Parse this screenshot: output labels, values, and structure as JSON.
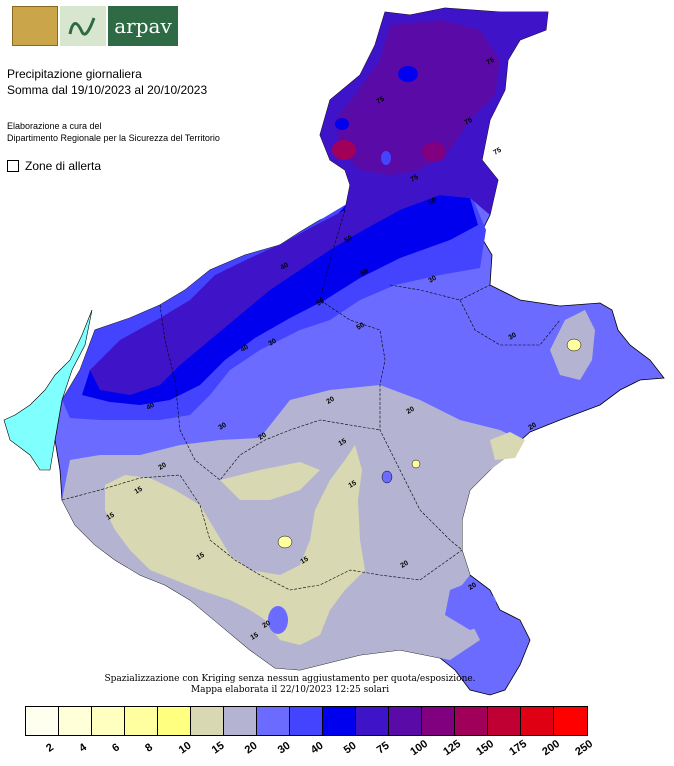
{
  "logo": {
    "brand": "arpav"
  },
  "title": {
    "line1": "Precipitazione giornaliera",
    "line2": "Somma dal 19/10/2023 al 20/10/2023"
  },
  "credits": {
    "line1": "Elaborazione a cura del",
    "line2": "Dipartimento Regionale per la Sicurezza del Territorio"
  },
  "alert_zones_label": "Zone di allerta",
  "footnote": {
    "line1": "Spazializzazione con Kriging senza nessun aggiustamento per quota/esposizione.",
    "line2": "Mappa elaborata il 22/10/2023 12:25 solari"
  },
  "legend": {
    "colors": [
      "#ffffef",
      "#ffffd8",
      "#ffffbf",
      "#ffffa0",
      "#ffff80",
      "#d8d8b2",
      "#b4b4d2",
      "#6b6bff",
      "#4444ff",
      "#0000ee",
      "#3f14c8",
      "#5a0aa6",
      "#800080",
      "#a0005a",
      "#c00032",
      "#e00014",
      "#ff0000"
    ],
    "labels": [
      "2",
      "4",
      "6",
      "8",
      "10",
      "15",
      "20",
      "30",
      "40",
      "50",
      "75",
      "100",
      "125",
      "150",
      "175",
      "200",
      "250"
    ]
  },
  "map_labels": [
    "75",
    "75",
    "75",
    "75",
    "75",
    "50",
    "50",
    "50",
    "50",
    "50",
    "40",
    "40",
    "40",
    "30",
    "30",
    "30",
    "30",
    "20",
    "20",
    "20",
    "20",
    "20",
    "20",
    "20",
    "20",
    "15",
    "15",
    "15",
    "15",
    "15",
    "15",
    "15"
  ]
}
